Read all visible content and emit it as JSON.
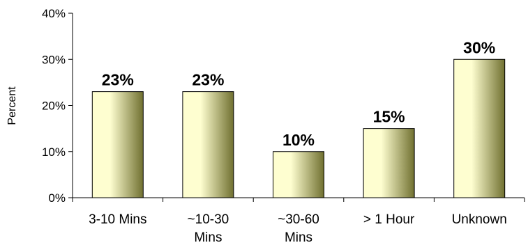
{
  "chart_data": {
    "type": "bar",
    "categories": [
      "3-10 Mins",
      "~10-30 Mins",
      "~30-60 Mins",
      "> 1 Hour",
      "Unknown"
    ],
    "category_lines": [
      [
        "3-10 Mins"
      ],
      [
        "~10-30",
        "Mins"
      ],
      [
        "~30-60",
        "Mins"
      ],
      [
        "> 1 Hour"
      ],
      [
        "Unknown"
      ]
    ],
    "values": [
      23,
      23,
      10,
      15,
      30
    ],
    "data_labels": [
      "23%",
      "23%",
      "10%",
      "15%",
      "30%"
    ],
    "ylabel": "Percent",
    "ylim": [
      0,
      40
    ],
    "yticks": [
      0,
      10,
      20,
      30,
      40
    ],
    "ytick_labels": [
      "0%",
      "10%",
      "20%",
      "30%",
      "40%"
    ],
    "grid": false,
    "legend": "none",
    "bar_color_light": "#fefed0",
    "bar_color_dark": "#707030",
    "axis_color": "#000000"
  }
}
